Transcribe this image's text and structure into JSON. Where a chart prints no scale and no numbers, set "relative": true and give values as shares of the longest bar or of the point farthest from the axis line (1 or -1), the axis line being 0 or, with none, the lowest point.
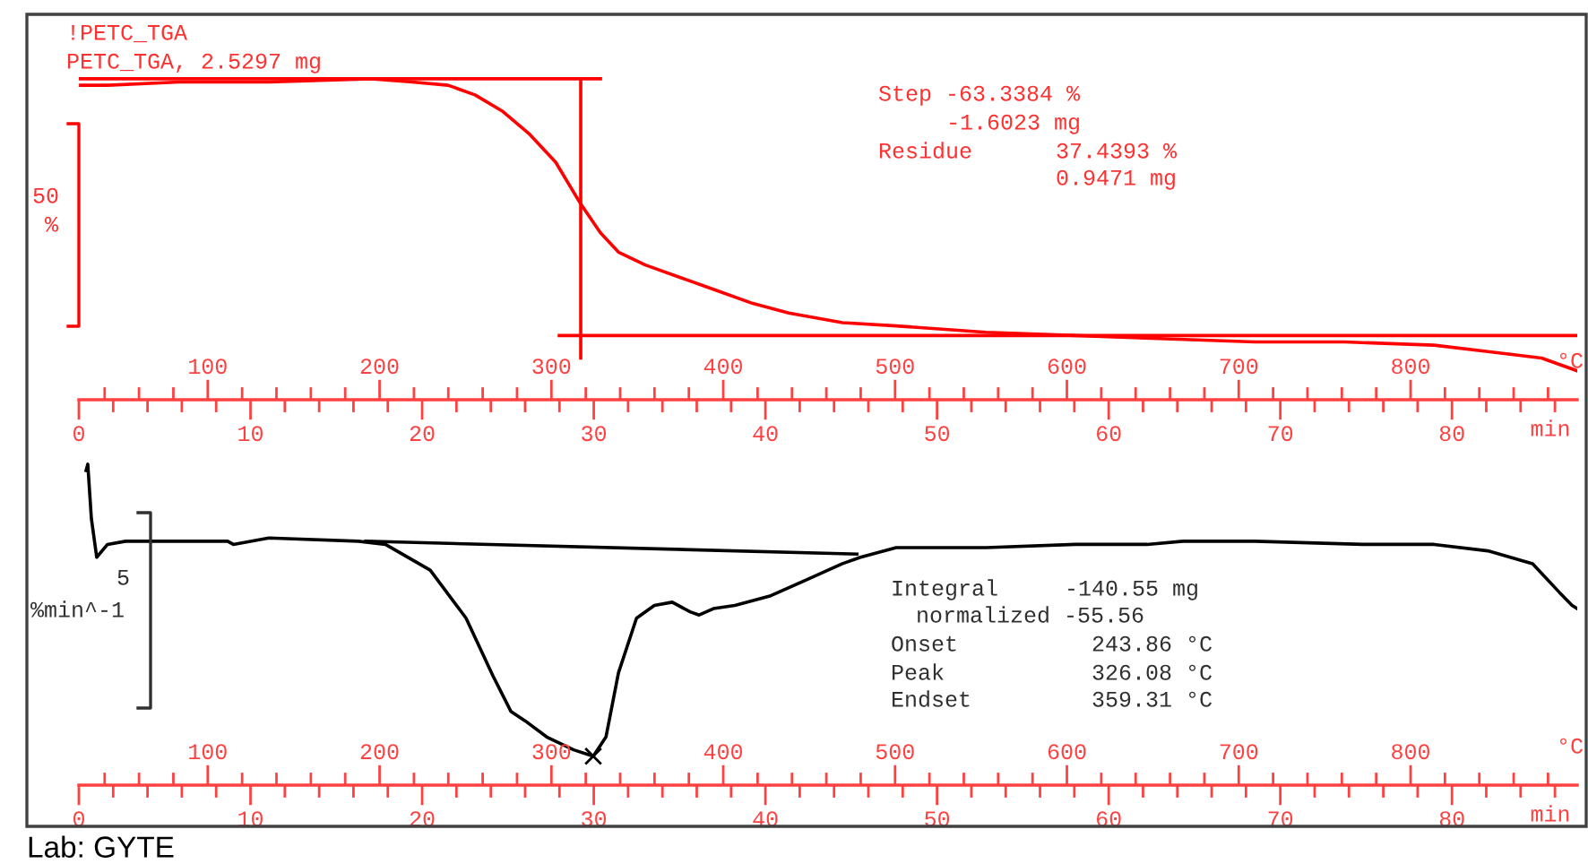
{
  "chart_data": [
    {
      "type": "line",
      "relative": true,
      "xlabel": "min",
      "x2label": "°C",
      "xlim": [
        0,
        87.3
      ],
      "x2lim": [
        25,
        897
      ],
      "xticks": [
        0,
        {
          "value": 2,
          "label": null
        },
        {
          "value": 4,
          "label": null
        },
        {
          "value": 6,
          "label": null
        },
        {
          "value": 8,
          "label": null
        },
        10,
        {
          "value": 12,
          "label": null
        },
        {
          "value": 14,
          "label": null
        },
        {
          "value": 16,
          "label": null
        },
        {
          "value": 18,
          "label": null
        },
        20,
        {
          "value": 22,
          "label": null
        },
        {
          "value": 24,
          "label": null
        },
        {
          "value": 26,
          "label": null
        },
        {
          "value": 28,
          "label": null
        },
        30,
        {
          "value": 32,
          "label": null
        },
        {
          "value": 34,
          "label": null
        },
        {
          "value": 36,
          "label": null
        },
        {
          "value": 38,
          "label": null
        },
        40,
        {
          "value": 42,
          "label": null
        },
        {
          "value": 44,
          "label": null
        },
        {
          "value": 46,
          "label": null
        },
        {
          "value": 48,
          "label": null
        },
        50,
        {
          "value": 52,
          "label": null
        },
        {
          "value": 54,
          "label": null
        },
        {
          "value": 56,
          "label": null
        },
        {
          "value": 58,
          "label": null
        },
        60,
        {
          "value": 62,
          "label": null
        },
        {
          "value": 64,
          "label": null
        },
        {
          "value": 66,
          "label": null
        },
        {
          "value": 68,
          "label": null
        },
        70,
        {
          "value": 72,
          "label": null
        },
        {
          "value": 74,
          "label": null
        },
        {
          "value": 76,
          "label": null
        },
        {
          "value": 78,
          "label": null
        },
        80,
        {
          "value": 82,
          "label": null
        },
        {
          "value": 84,
          "label": null
        },
        {
          "value": 86,
          "label": null
        }
      ],
      "x2ticks": [
        {
          "value": 40,
          "label": null
        },
        {
          "value": 60,
          "label": null
        },
        {
          "value": 80,
          "label": null
        },
        100,
        {
          "value": 120,
          "label": null
        },
        {
          "value": 140,
          "label": null
        },
        {
          "value": 160,
          "label": null
        },
        {
          "value": 180,
          "label": null
        },
        200,
        {
          "value": 220,
          "label": null
        },
        {
          "value": 240,
          "label": null
        },
        {
          "value": 260,
          "label": null
        },
        {
          "value": 280,
          "label": null
        },
        300,
        {
          "value": 320,
          "label": null
        },
        {
          "value": 340,
          "label": null
        },
        {
          "value": 360,
          "label": null
        },
        {
          "value": 380,
          "label": null
        },
        400,
        {
          "value": 420,
          "label": null
        },
        {
          "value": 440,
          "label": null
        },
        {
          "value": 460,
          "label": null
        },
        {
          "value": 480,
          "label": null
        },
        500,
        {
          "value": 520,
          "label": null
        },
        {
          "value": 540,
          "label": null
        },
        {
          "value": 560,
          "label": null
        },
        {
          "value": 580,
          "label": null
        },
        600,
        {
          "value": 620,
          "label": null
        },
        {
          "value": 640,
          "label": null
        },
        {
          "value": 660,
          "label": null
        },
        {
          "value": 680,
          "label": null
        },
        700,
        {
          "value": 720,
          "label": null
        },
        {
          "value": 740,
          "label": null
        },
        {
          "value": 760,
          "label": null
        },
        {
          "value": 780,
          "label": null
        },
        800,
        {
          "value": 820,
          "label": null
        },
        {
          "value": 840,
          "label": null
        },
        {
          "value": 860,
          "label": null
        },
        {
          "value": 880,
          "label": null
        }
      ],
      "series": [
        {
          "color": "#ff0000",
          "x": [
            0.1,
            1.67,
            5.85,
            11.07,
            17.02,
            19.43,
            21.51,
            23.08,
            24.65,
            26.21,
            27.78,
            29.24,
            30.39,
            31.44,
            33.0,
            35.09,
            37.18,
            39.27,
            41.36,
            44.49,
            47.62,
            52.85,
            58.07,
            63.29,
            68.51,
            73.73,
            78.96,
            82.09,
            85.22,
            87.3
          ],
          "values": [
            0.98,
            0.98,
            0.99,
            0.99,
            1.0,
            0.99,
            0.98,
            0.95,
            0.9,
            0.83,
            0.74,
            0.61,
            0.52,
            0.46,
            0.42,
            0.38,
            0.34,
            0.3,
            0.27,
            0.24,
            0.23,
            0.21,
            0.2,
            0.19,
            0.18,
            0.18,
            0.17,
            0.15,
            0.13,
            0.09
          ]
        },
        {
          "color": "#ff0000",
          "x": [
            0,
            30.39
          ],
          "values": [
            1.0,
            1.0
          ]
        },
        {
          "color": "#ff0000",
          "x": [
            29.24,
            29.24
          ],
          "values": [
            1.0,
            0.13
          ]
        },
        {
          "color": "#ff0000",
          "x": [
            27.99,
            87.3
          ],
          "values": [
            0.2,
            0.2
          ]
        }
      ],
      "annotations": [
        "!PETC_TGA",
        "PETC_TGA, 2.5297 mg",
        "Step -63.3384 %",
        "-1.6023 mg",
        "Residue",
        "37.4393 %",
        "0.9471 mg",
        "50",
        "%"
      ]
    },
    {
      "type": "line",
      "relative": true,
      "xlabel": "min",
      "x2label": "°C",
      "xlim": [
        0,
        87.3
      ],
      "x2lim": [
        25,
        897
      ],
      "xticks": [
        0,
        {
          "value": 2,
          "label": null
        },
        {
          "value": 4,
          "label": null
        },
        {
          "value": 6,
          "label": null
        },
        {
          "value": 8,
          "label": null
        },
        10,
        {
          "value": 12,
          "label": null
        },
        {
          "value": 14,
          "label": null
        },
        {
          "value": 16,
          "label": null
        },
        {
          "value": 18,
          "label": null
        },
        20,
        {
          "value": 22,
          "label": null
        },
        {
          "value": 24,
          "label": null
        },
        {
          "value": 26,
          "label": null
        },
        {
          "value": 28,
          "label": null
        },
        30,
        {
          "value": 32,
          "label": null
        },
        {
          "value": 34,
          "label": null
        },
        {
          "value": 36,
          "label": null
        },
        {
          "value": 38,
          "label": null
        },
        40,
        {
          "value": 42,
          "label": null
        },
        {
          "value": 44,
          "label": null
        },
        {
          "value": 46,
          "label": null
        },
        {
          "value": 48,
          "label": null
        },
        50,
        {
          "value": 52,
          "label": null
        },
        {
          "value": 54,
          "label": null
        },
        {
          "value": 56,
          "label": null
        },
        {
          "value": 58,
          "label": null
        },
        60,
        {
          "value": 62,
          "label": null
        },
        {
          "value": 64,
          "label": null
        },
        {
          "value": 66,
          "label": null
        },
        {
          "value": 68,
          "label": null
        },
        70,
        {
          "value": 72,
          "label": null
        },
        {
          "value": 74,
          "label": null
        },
        {
          "value": 76,
          "label": null
        },
        {
          "value": 78,
          "label": null
        },
        80,
        {
          "value": 82,
          "label": null
        },
        {
          "value": 84,
          "label": null
        },
        {
          "value": 86,
          "label": null
        }
      ],
      "x2ticks": [
        {
          "value": 40,
          "label": null
        },
        {
          "value": 60,
          "label": null
        },
        {
          "value": 80,
          "label": null
        },
        100,
        {
          "value": 120,
          "label": null
        },
        {
          "value": 140,
          "label": null
        },
        {
          "value": 160,
          "label": null
        },
        {
          "value": 180,
          "label": null
        },
        200,
        {
          "value": 220,
          "label": null
        },
        {
          "value": 240,
          "label": null
        },
        {
          "value": 260,
          "label": null
        },
        {
          "value": 280,
          "label": null
        },
        300,
        {
          "value": 320,
          "label": null
        },
        {
          "value": 340,
          "label": null
        },
        {
          "value": 360,
          "label": null
        },
        {
          "value": 380,
          "label": null
        },
        400,
        {
          "value": 420,
          "label": null
        },
        {
          "value": 440,
          "label": null
        },
        {
          "value": 460,
          "label": null
        },
        {
          "value": 480,
          "label": null
        },
        500,
        {
          "value": 520,
          "label": null
        },
        {
          "value": 540,
          "label": null
        },
        {
          "value": 560,
          "label": null
        },
        {
          "value": 580,
          "label": null
        },
        600,
        {
          "value": 620,
          "label": null
        },
        {
          "value": 640,
          "label": null
        },
        {
          "value": 660,
          "label": null
        },
        {
          "value": 680,
          "label": null
        },
        700,
        {
          "value": 720,
          "label": null
        },
        {
          "value": 740,
          "label": null
        },
        {
          "value": 760,
          "label": null
        },
        {
          "value": 780,
          "label": null
        },
        800,
        {
          "value": 820,
          "label": null
        },
        {
          "value": 840,
          "label": null
        },
        {
          "value": 860,
          "label": null
        },
        {
          "value": 880,
          "label": null
        }
      ],
      "series": [
        {
          "color": "#000000",
          "x": [
            0.42,
            0.52,
            0.73,
            1.04,
            1.67,
            2.72,
            4.07,
            8.67,
            9.0,
            11.07,
            16.29,
            17.86,
            20.47,
            22.56,
            24.13,
            25.17,
            26.01,
            27.26,
            28.83,
            29.97,
            30.71,
            31.44,
            32.49,
            33.53,
            34.57,
            35.61,
            36.14,
            36.97,
            38.22,
            40.31,
            42.4,
            44.49,
            45.54,
            47.62,
            52.85,
            58.07,
            62.24,
            64.33,
            68.51,
            74.78,
            78.96,
            82.09,
            84.7,
            86.27,
            87.0,
            87.3
          ],
          "values": [
            0.98,
            1.0,
            0.83,
            0.71,
            0.75,
            0.76,
            0.76,
            0.76,
            0.75,
            0.77,
            0.76,
            0.75,
            0.67,
            0.52,
            0.34,
            0.23,
            0.2,
            0.15,
            0.11,
            0.09,
            0.15,
            0.35,
            0.52,
            0.56,
            0.57,
            0.54,
            0.53,
            0.55,
            0.56,
            0.59,
            0.64,
            0.69,
            0.71,
            0.74,
            0.74,
            0.75,
            0.75,
            0.76,
            0.76,
            0.75,
            0.75,
            0.73,
            0.69,
            0.6,
            0.56,
            0.55
          ]
        },
        {
          "color": "#000000",
          "x": [
            16.71,
            45.33
          ],
          "values": [
            0.76,
            0.72
          ]
        },
        {
          "type": "scatter",
          "marker": "cross",
          "color": "#000000",
          "x": [
            29.97
          ],
          "values": [
            0.09
          ]
        }
      ],
      "annotations": [
        "Integral",
        "-140.55 mg",
        "normalized -55.56",
        "Onset",
        "243.86 °C",
        "Peak",
        "326.08 °C",
        "Endset",
        "359.31 °C",
        "5",
        "%min^-1",
        "Lab: GYTE"
      ]
    }
  ]
}
